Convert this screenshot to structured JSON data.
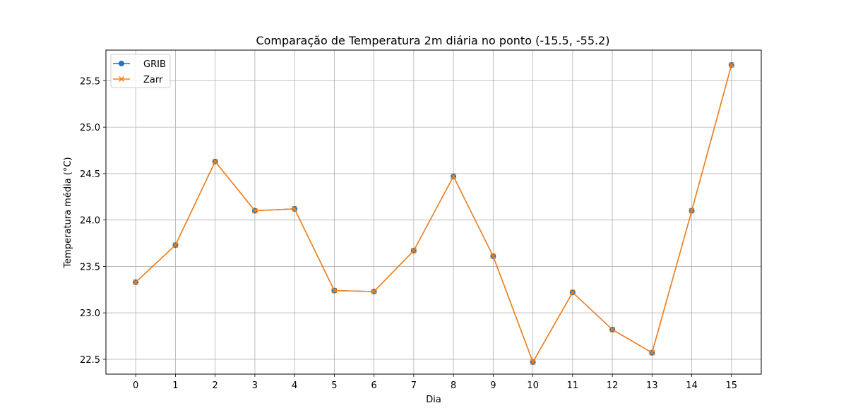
{
  "chart_data": {
    "type": "line",
    "title": "Comparação de Temperatura 2m diária no ponto (-15.5, -55.2)",
    "xlabel": "Dia",
    "ylabel": "Temperatura média (°C)",
    "x": [
      0,
      1,
      2,
      3,
      4,
      5,
      6,
      7,
      8,
      9,
      10,
      11,
      12,
      13,
      14,
      15
    ],
    "xticks": [
      "0",
      "1",
      "2",
      "3",
      "4",
      "5",
      "6",
      "7",
      "8",
      "9",
      "10",
      "11",
      "12",
      "13",
      "14",
      "15"
    ],
    "yticks": [
      "22.5",
      "23.0",
      "23.5",
      "24.0",
      "24.5",
      "25.0",
      "25.5"
    ],
    "xlim": [
      -0.75,
      15.75
    ],
    "ylim": [
      22.34,
      25.83
    ],
    "grid": true,
    "legend_position": "upper-left",
    "series": [
      {
        "name": "GRIB",
        "marker": "circle",
        "color": "#1f77b4",
        "values": [
          23.33,
          23.73,
          24.63,
          24.1,
          24.12,
          23.24,
          23.23,
          23.67,
          24.47,
          23.61,
          22.47,
          23.22,
          22.82,
          22.57,
          24.1,
          25.67
        ]
      },
      {
        "name": "Zarr",
        "marker": "x",
        "color": "#ff7f0e",
        "values": [
          23.33,
          23.73,
          24.63,
          24.1,
          24.12,
          23.24,
          23.23,
          23.67,
          24.47,
          23.61,
          22.47,
          23.22,
          22.82,
          22.57,
          24.1,
          25.67
        ]
      }
    ]
  }
}
